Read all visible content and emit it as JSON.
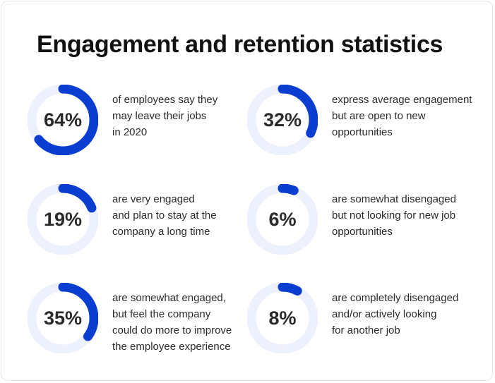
{
  "title": "Engagement and retention statistics",
  "colors": {
    "track": "#EDF1FD",
    "accent": "#0A3ED0"
  },
  "chart_data": {
    "type": "pie",
    "stats": [
      {
        "value": 64,
        "label": "64%",
        "lines": [
          "of employees say they",
          "may leave their jobs",
          "in 2020"
        ]
      },
      {
        "value": 32,
        "label": "32%",
        "lines": [
          "express average engagement",
          "but are open to new",
          "opportunities"
        ]
      },
      {
        "value": 19,
        "label": "19%",
        "lines": [
          "are very engaged",
          "and plan to stay at the",
          "company a long time"
        ]
      },
      {
        "value": 6,
        "label": "6%",
        "lines": [
          "are somewhat disengaged",
          "but not looking for new job",
          "opportunities"
        ]
      },
      {
        "value": 35,
        "label": "35%",
        "lines": [
          "are somewhat engaged,",
          "but feel the company",
          "could do more to improve",
          "the employee experience"
        ]
      },
      {
        "value": 8,
        "label": "8%",
        "lines": [
          "are completely disengaged",
          "and/or actively looking",
          "for another job"
        ]
      }
    ]
  }
}
